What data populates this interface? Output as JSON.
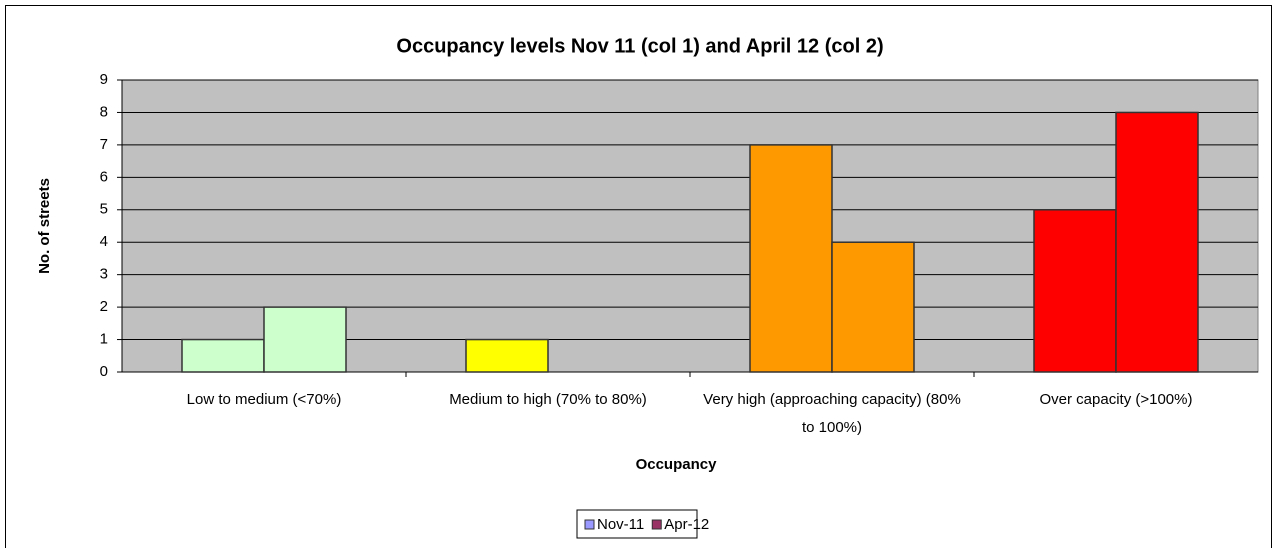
{
  "chart_data": {
    "type": "bar",
    "title": "Occupancy levels Nov 11 (col 1) and April 12 (col 2)",
    "x_label": "Occupancy",
    "y_label": "No. of streets",
    "categories": [
      "Low to medium (<70%)",
      "Medium to high (70% to 80%)",
      "Very high (approaching capacity) (80% to 100%)",
      "Over capacity (>100%)"
    ],
    "category_colors": [
      "#ccffcc",
      "#ffff00",
      "#ff9900",
      "#ff0000"
    ],
    "series": [
      {
        "name": "Nov-11",
        "color": "#9999ff",
        "values": [
          1,
          1,
          7,
          5
        ]
      },
      {
        "name": "Apr-12",
        "color": "#993366",
        "values": [
          2,
          0,
          4,
          8
        ]
      }
    ],
    "ylim": [
      0,
      9
    ],
    "yticks": [
      0,
      1,
      2,
      3,
      4,
      5,
      6,
      7,
      8,
      9
    ],
    "grid": true,
    "legend": "bottom"
  }
}
